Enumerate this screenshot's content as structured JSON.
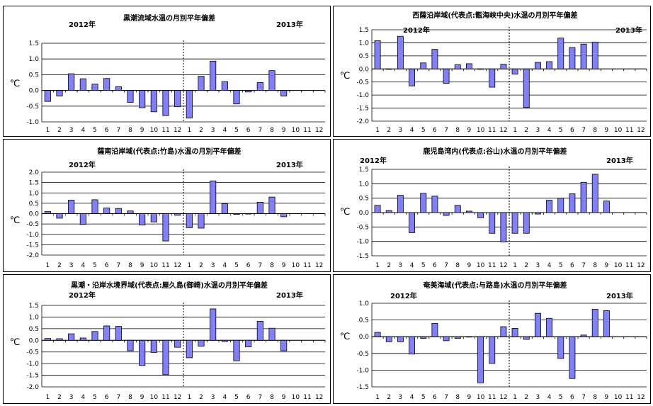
{
  "colors": {
    "bar_fill": "#8080ff",
    "bar_stroke": "#000000"
  },
  "chart_data": [
    {
      "type": "bar",
      "title": "黒潮流域水温の月別平年偏差",
      "year_left": "2012年",
      "year_right": "2013年",
      "ylabel": "℃",
      "ylim": [
        -1.0,
        1.5
      ],
      "yticks": [
        "1.5",
        "1.0",
        "0.5",
        "0.0",
        "-0.5",
        "-1.0"
      ],
      "categories": [
        "1",
        "2",
        "3",
        "4",
        "5",
        "6",
        "7",
        "8",
        "9",
        "10",
        "11",
        "12",
        "1",
        "2",
        "3",
        "4",
        "5",
        "6",
        "7",
        "8",
        "9",
        "10",
        "11",
        "12"
      ],
      "values": [
        -0.35,
        -0.18,
        0.53,
        0.37,
        0.2,
        0.38,
        0.12,
        -0.38,
        -0.55,
        -0.68,
        -0.8,
        -0.52,
        -0.88,
        0.45,
        0.93,
        0.28,
        -0.43,
        -0.05,
        0.25,
        0.63,
        -0.18,
        null,
        null,
        null
      ]
    },
    {
      "type": "bar",
      "title": "西薩沿岸域(代表点:甑海峡中央)水温の月別平年偏差",
      "year_left": "2012年",
      "year_right": "2013年",
      "ylabel": "℃",
      "ylim": [
        -2.0,
        1.5
      ],
      "yticks": [
        "1.5",
        "1.0",
        "0.5",
        "0.0",
        "-0.5",
        "-1.0",
        "-1.5",
        "-2.0"
      ],
      "categories": [
        "1",
        "2",
        "3",
        "4",
        "5",
        "6",
        "7",
        "8",
        "9",
        "10",
        "11",
        "12",
        "1",
        "2",
        "3",
        "4",
        "5",
        "6",
        "7",
        "8",
        "9",
        "10",
        "11",
        "12"
      ],
      "values": [
        1.08,
        0.0,
        1.25,
        -0.65,
        0.23,
        0.75,
        -0.55,
        0.16,
        0.2,
        0.0,
        -0.7,
        0.18,
        -0.2,
        -1.48,
        0.25,
        0.28,
        1.18,
        0.82,
        0.95,
        1.03,
        null,
        null,
        null,
        null
      ]
    },
    {
      "type": "bar",
      "title": "薩南沿岸域(代表点:竹島)水温の月別平年偏差",
      "year_left": "2012年",
      "year_right": "2013年",
      "ylabel": "℃",
      "ylim": [
        -2.0,
        2.0
      ],
      "yticks": [
        "2.0",
        "1.5",
        "1.0",
        "0.5",
        "0.0",
        "-0.5",
        "-1.0",
        "-1.5",
        "-2.0"
      ],
      "categories": [
        "1",
        "2",
        "3",
        "4",
        "5",
        "6",
        "7",
        "8",
        "9",
        "10",
        "11",
        "12",
        "1",
        "2",
        "3",
        "4",
        "5",
        "6",
        "7",
        "8",
        "9",
        "10",
        "11",
        "12"
      ],
      "values": [
        0.1,
        -0.22,
        0.65,
        -0.52,
        0.67,
        0.27,
        0.25,
        0.13,
        -0.55,
        -0.4,
        -1.32,
        -0.08,
        -0.68,
        -0.7,
        1.58,
        0.48,
        -0.04,
        0.0,
        0.55,
        0.8,
        -0.15,
        null,
        null,
        null
      ]
    },
    {
      "type": "bar",
      "title": "鹿児島湾内(代表点:谷山)水温の月別平年偏差",
      "year_left": "2012年",
      "year_right": "2013年",
      "ylabel": "℃",
      "ylim": [
        -1.5,
        1.5
      ],
      "yticks": [
        "1.5",
        "1.0",
        "0.5",
        "0.0",
        "-0.5",
        "-1.0",
        "-1.5"
      ],
      "categories": [
        "1",
        "2",
        "3",
        "4",
        "5",
        "6",
        "7",
        "8",
        "9",
        "10",
        "11",
        "12",
        "1",
        "2",
        "3",
        "4",
        "5",
        "6",
        "7",
        "8",
        "9",
        "10",
        "11",
        "12"
      ],
      "values": [
        0.25,
        0.07,
        0.6,
        -0.7,
        0.67,
        0.57,
        -0.1,
        0.25,
        0.05,
        -0.18,
        -0.72,
        -1.02,
        -0.72,
        -0.72,
        -0.05,
        0.43,
        0.5,
        0.65,
        1.05,
        1.33,
        0.4,
        null,
        null,
        null
      ]
    },
    {
      "type": "bar",
      "title": "黒潮・沿岸水境界域(代表点:屋久島(御崎)水温の月別平年偏差",
      "year_left": "2012年",
      "year_right": "2013年",
      "ylabel": "℃",
      "ylim": [
        -2.0,
        1.5
      ],
      "yticks": [
        "1.5",
        "1.0",
        "0.5",
        "0.0",
        "-0.5",
        "-1.0",
        "-1.5",
        "-2.0"
      ],
      "categories": [
        "1",
        "2",
        "3",
        "4",
        "5",
        "6",
        "7",
        "8",
        "9",
        "10",
        "11",
        "12",
        "1",
        "2",
        "3",
        "4",
        "5",
        "6",
        "7",
        "8",
        "9",
        "10",
        "11",
        "12"
      ],
      "values": [
        0.08,
        0.07,
        0.28,
        0.1,
        0.38,
        0.62,
        0.6,
        -0.45,
        -1.08,
        -0.52,
        -1.48,
        -0.3,
        -0.75,
        -0.25,
        1.35,
        -0.05,
        -0.88,
        -0.28,
        0.82,
        0.52,
        -0.45,
        null,
        null,
        null
      ]
    },
    {
      "type": "bar",
      "title": "奄美海域(代表点:与路島)水温の月別平年偏差",
      "year_left": "2012年",
      "year_right": "2013年",
      "ylabel": "℃",
      "ylim": [
        -1.5,
        1.0
      ],
      "yticks": [
        "1.0",
        "0.5",
        "0.0",
        "-0.5",
        "-1.0",
        "-1.5"
      ],
      "categories": [
        "1",
        "2",
        "3",
        "4",
        "5",
        "6",
        "7",
        "8",
        "9",
        "10",
        "11",
        "12",
        "1",
        "2",
        "3",
        "4",
        "5",
        "6",
        "7",
        "8",
        "9",
        "10",
        "11",
        "12"
      ],
      "values": [
        0.13,
        -0.15,
        -0.15,
        -0.52,
        -0.05,
        0.4,
        -0.12,
        -0.05,
        0.0,
        -1.38,
        -0.8,
        0.3,
        0.25,
        -0.08,
        0.7,
        0.55,
        -0.65,
        -1.25,
        0.05,
        0.82,
        0.78,
        null,
        null,
        null
      ]
    }
  ]
}
